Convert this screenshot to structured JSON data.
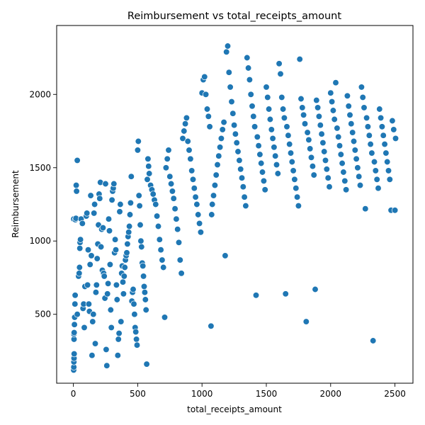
{
  "chart_data": {
    "type": "scatter",
    "title": "Reimbursement vs total_receipts_amount",
    "xlabel": "total_receipts_amount",
    "ylabel": "Reimbursement",
    "xlim": [
      -130,
      2640
    ],
    "ylim": [
      30,
      2470
    ],
    "xticks": [
      0,
      500,
      1000,
      1500,
      2000,
      2500
    ],
    "yticks": [
      500,
      1000,
      1500,
      2000
    ],
    "xtick_labels": [
      "0",
      "500",
      "1000",
      "1500",
      "2000",
      "2500"
    ],
    "ytick_labels": [
      "500",
      "1000",
      "1500",
      "2000"
    ],
    "grid": false,
    "legend": "none",
    "marker_color": "#1f77b4",
    "points": [
      [
        2,
        120
      ],
      [
        3,
        140
      ],
      [
        4,
        175
      ],
      [
        5,
        200
      ],
      [
        6,
        230
      ],
      [
        5,
        330
      ],
      [
        4,
        365
      ],
      [
        6,
        375
      ],
      [
        8,
        430
      ],
      [
        10,
        480
      ],
      [
        12,
        570
      ],
      [
        14,
        630
      ],
      [
        2,
        1150
      ],
      [
        15,
        1145
      ],
      [
        20,
        1155
      ],
      [
        22,
        1380
      ],
      [
        25,
        1340
      ],
      [
        30,
        1550
      ],
      [
        30,
        500
      ],
      [
        40,
        760
      ],
      [
        45,
        780
      ],
      [
        48,
        820
      ],
      [
        50,
        950
      ],
      [
        52,
        990
      ],
      [
        55,
        1010
      ],
      [
        60,
        1150
      ],
      [
        70,
        1120
      ],
      [
        75,
        540
      ],
      [
        80,
        570
      ],
      [
        85,
        410
      ],
      [
        90,
        690
      ],
      [
        100,
        1170
      ],
      [
        105,
        1190
      ],
      [
        110,
        700
      ],
      [
        115,
        940
      ],
      [
        120,
        570
      ],
      [
        125,
        520
      ],
      [
        130,
        840
      ],
      [
        135,
        1310
      ],
      [
        140,
        900
      ],
      [
        145,
        220
      ],
      [
        150,
        450
      ],
      [
        155,
        500
      ],
      [
        160,
        1190
      ],
      [
        165,
        1250
      ],
      [
        170,
        300
      ],
      [
        175,
        650
      ],
      [
        180,
        700
      ],
      [
        185,
        880
      ],
      [
        190,
        980
      ],
      [
        195,
        1110
      ],
      [
        200,
        1320
      ],
      [
        205,
        1290
      ],
      [
        210,
        1400
      ],
      [
        215,
        960
      ],
      [
        220,
        1080
      ],
      [
        225,
        800
      ],
      [
        230,
        1090
      ],
      [
        235,
        780
      ],
      [
        240,
        760
      ],
      [
        245,
        610
      ],
      [
        250,
        1390
      ],
      [
        255,
        260
      ],
      [
        260,
        150
      ],
      [
        265,
        640
      ],
      [
        270,
        710
      ],
      [
        275,
        1150
      ],
      [
        280,
        1070
      ],
      [
        285,
        840
      ],
      [
        290,
        530
      ],
      [
        295,
        410
      ],
      [
        300,
        1280
      ],
      [
        305,
        1340
      ],
      [
        310,
        1360
      ],
      [
        315,
        1390
      ],
      [
        320,
        920
      ],
      [
        325,
        1010
      ],
      [
        330,
        940
      ],
      [
        335,
        700
      ],
      [
        340,
        600
      ],
      [
        345,
        220
      ],
      [
        350,
        330
      ],
      [
        355,
        370
      ],
      [
        360,
        1200
      ],
      [
        365,
        1250
      ],
      [
        370,
        450
      ],
      [
        375,
        780
      ],
      [
        380,
        830
      ],
      [
        385,
        720
      ],
      [
        390,
        640
      ],
      [
        395,
        760
      ],
      [
        400,
        820
      ],
      [
        405,
        870
      ],
      [
        410,
        900
      ],
      [
        415,
        920
      ],
      [
        420,
        980
      ],
      [
        425,
        1030
      ],
      [
        430,
        1060
      ],
      [
        435,
        1100
      ],
      [
        440,
        1180
      ],
      [
        445,
        1260
      ],
      [
        450,
        1440
      ],
      [
        455,
        590
      ],
      [
        460,
        650
      ],
      [
        465,
        670
      ],
      [
        470,
        570
      ],
      [
        475,
        500
      ],
      [
        480,
        410
      ],
      [
        485,
        380
      ],
      [
        490,
        330
      ],
      [
        495,
        290
      ],
      [
        500,
        1620
      ],
      [
        505,
        1680
      ],
      [
        510,
        1310
      ],
      [
        515,
        1240
      ],
      [
        520,
        1110
      ],
      [
        525,
        1000
      ],
      [
        530,
        960
      ],
      [
        535,
        850
      ],
      [
        540,
        830
      ],
      [
        545,
        760
      ],
      [
        550,
        690
      ],
      [
        555,
        650
      ],
      [
        560,
        600
      ],
      [
        565,
        530
      ],
      [
        570,
        160
      ],
      [
        575,
        1420
      ],
      [
        580,
        1560
      ],
      [
        585,
        1510
      ],
      [
        590,
        1460
      ],
      [
        600,
        1380
      ],
      [
        610,
        1350
      ],
      [
        620,
        1320
      ],
      [
        630,
        1280
      ],
      [
        640,
        1250
      ],
      [
        650,
        1170
      ],
      [
        660,
        1100
      ],
      [
        670,
        1010
      ],
      [
        680,
        940
      ],
      [
        690,
        870
      ],
      [
        700,
        820
      ],
      [
        710,
        480
      ],
      [
        720,
        1500
      ],
      [
        730,
        1560
      ],
      [
        740,
        1620
      ],
      [
        750,
        1440
      ],
      [
        760,
        1390
      ],
      [
        770,
        1340
      ],
      [
        780,
        1290
      ],
      [
        790,
        1220
      ],
      [
        800,
        1150
      ],
      [
        810,
        1080
      ],
      [
        820,
        990
      ],
      [
        830,
        870
      ],
      [
        840,
        780
      ],
      [
        850,
        1700
      ],
      [
        860,
        1750
      ],
      [
        870,
        1800
      ],
      [
        880,
        1840
      ],
      [
        890,
        1680
      ],
      [
        900,
        1620
      ],
      [
        910,
        1560
      ],
      [
        920,
        1480
      ],
      [
        930,
        1420
      ],
      [
        940,
        1360
      ],
      [
        950,
        1300
      ],
      [
        960,
        1250
      ],
      [
        970,
        1180
      ],
      [
        980,
        1120
      ],
      [
        990,
        1060
      ],
      [
        1000,
        2010
      ],
      [
        1010,
        2100
      ],
      [
        1020,
        2120
      ],
      [
        1030,
        2000
      ],
      [
        1040,
        1900
      ],
      [
        1050,
        1850
      ],
      [
        1060,
        1780
      ],
      [
        1070,
        420
      ],
      [
        1075,
        1180
      ],
      [
        1080,
        1250
      ],
      [
        1090,
        1310
      ],
      [
        1100,
        1380
      ],
      [
        1110,
        1450
      ],
      [
        1120,
        1520
      ],
      [
        1130,
        1580
      ],
      [
        1140,
        1640
      ],
      [
        1150,
        1700
      ],
      [
        1160,
        1760
      ],
      [
        1170,
        1810
      ],
      [
        1180,
        900
      ],
      [
        1190,
        2290
      ],
      [
        1200,
        2330
      ],
      [
        1210,
        2150
      ],
      [
        1220,
        2050
      ],
      [
        1230,
        1950
      ],
      [
        1240,
        1870
      ],
      [
        1250,
        1790
      ],
      [
        1260,
        1730
      ],
      [
        1270,
        1670
      ],
      [
        1280,
        1610
      ],
      [
        1290,
        1550
      ],
      [
        1300,
        1490
      ],
      [
        1310,
        1430
      ],
      [
        1320,
        1370
      ],
      [
        1330,
        1300
      ],
      [
        1340,
        1240
      ],
      [
        1350,
        2250
      ],
      [
        1360,
        2180
      ],
      [
        1370,
        2100
      ],
      [
        1380,
        2000
      ],
      [
        1390,
        1920
      ],
      [
        1400,
        1850
      ],
      [
        1410,
        1780
      ],
      [
        1420,
        630
      ],
      [
        1430,
        1710
      ],
      [
        1440,
        1650
      ],
      [
        1450,
        1590
      ],
      [
        1460,
        1530
      ],
      [
        1470,
        1470
      ],
      [
        1480,
        1410
      ],
      [
        1490,
        1350
      ],
      [
        1500,
        2050
      ],
      [
        1510,
        1980
      ],
      [
        1520,
        1900
      ],
      [
        1530,
        1830
      ],
      [
        1540,
        1760
      ],
      [
        1550,
        1700
      ],
      [
        1560,
        1640
      ],
      [
        1570,
        1580
      ],
      [
        1580,
        1520
      ],
      [
        1590,
        1460
      ],
      [
        1600,
        2210
      ],
      [
        1610,
        2140
      ],
      [
        1620,
        1980
      ],
      [
        1630,
        1900
      ],
      [
        1640,
        1840
      ],
      [
        1650,
        640
      ],
      [
        1660,
        1780
      ],
      [
        1670,
        1720
      ],
      [
        1680,
        1660
      ],
      [
        1690,
        1600
      ],
      [
        1700,
        1540
      ],
      [
        1710,
        1480
      ],
      [
        1720,
        1420
      ],
      [
        1730,
        1360
      ],
      [
        1740,
        1300
      ],
      [
        1750,
        1240
      ],
      [
        1760,
        2240
      ],
      [
        1770,
        1970
      ],
      [
        1780,
        1910
      ],
      [
        1790,
        1860
      ],
      [
        1800,
        1800
      ],
      [
        1810,
        450
      ],
      [
        1820,
        1740
      ],
      [
        1830,
        1690
      ],
      [
        1840,
        1630
      ],
      [
        1850,
        1570
      ],
      [
        1860,
        1510
      ],
      [
        1870,
        1450
      ],
      [
        1880,
        670
      ],
      [
        1890,
        1960
      ],
      [
        1900,
        1910
      ],
      [
        1910,
        1850
      ],
      [
        1920,
        1790
      ],
      [
        1930,
        1730
      ],
      [
        1940,
        1670
      ],
      [
        1950,
        1610
      ],
      [
        1960,
        1550
      ],
      [
        1970,
        1490
      ],
      [
        1980,
        1430
      ],
      [
        1990,
        1370
      ],
      [
        2000,
        2010
      ],
      [
        2010,
        1950
      ],
      [
        2020,
        1890
      ],
      [
        2030,
        1830
      ],
      [
        2040,
        2080
      ],
      [
        2050,
        1770
      ],
      [
        2060,
        1710
      ],
      [
        2070,
        1650
      ],
      [
        2080,
        1590
      ],
      [
        2090,
        1530
      ],
      [
        2100,
        1470
      ],
      [
        2110,
        1410
      ],
      [
        2120,
        1350
      ],
      [
        2130,
        1990
      ],
      [
        2140,
        1920
      ],
      [
        2150,
        1860
      ],
      [
        2160,
        1800
      ],
      [
        2170,
        1740
      ],
      [
        2180,
        1680
      ],
      [
        2190,
        1620
      ],
      [
        2200,
        1560
      ],
      [
        2210,
        1500
      ],
      [
        2220,
        1440
      ],
      [
        2230,
        1380
      ],
      [
        2240,
        2050
      ],
      [
        2250,
        1980
      ],
      [
        2260,
        1910
      ],
      [
        2270,
        1220
      ],
      [
        2280,
        1840
      ],
      [
        2290,
        1780
      ],
      [
        2300,
        1720
      ],
      [
        2310,
        1660
      ],
      [
        2320,
        1600
      ],
      [
        2330,
        320
      ],
      [
        2340,
        1540
      ],
      [
        2350,
        1480
      ],
      [
        2360,
        1420
      ],
      [
        2370,
        1360
      ],
      [
        2380,
        1900
      ],
      [
        2390,
        1840
      ],
      [
        2400,
        1780
      ],
      [
        2410,
        1720
      ],
      [
        2420,
        1660
      ],
      [
        2430,
        1600
      ],
      [
        2440,
        1540
      ],
      [
        2450,
        1480
      ],
      [
        2460,
        1420
      ],
      [
        2470,
        1210
      ],
      [
        2480,
        1820
      ],
      [
        2490,
        1760
      ],
      [
        2500,
        1210
      ],
      [
        2505,
        1700
      ]
    ]
  }
}
